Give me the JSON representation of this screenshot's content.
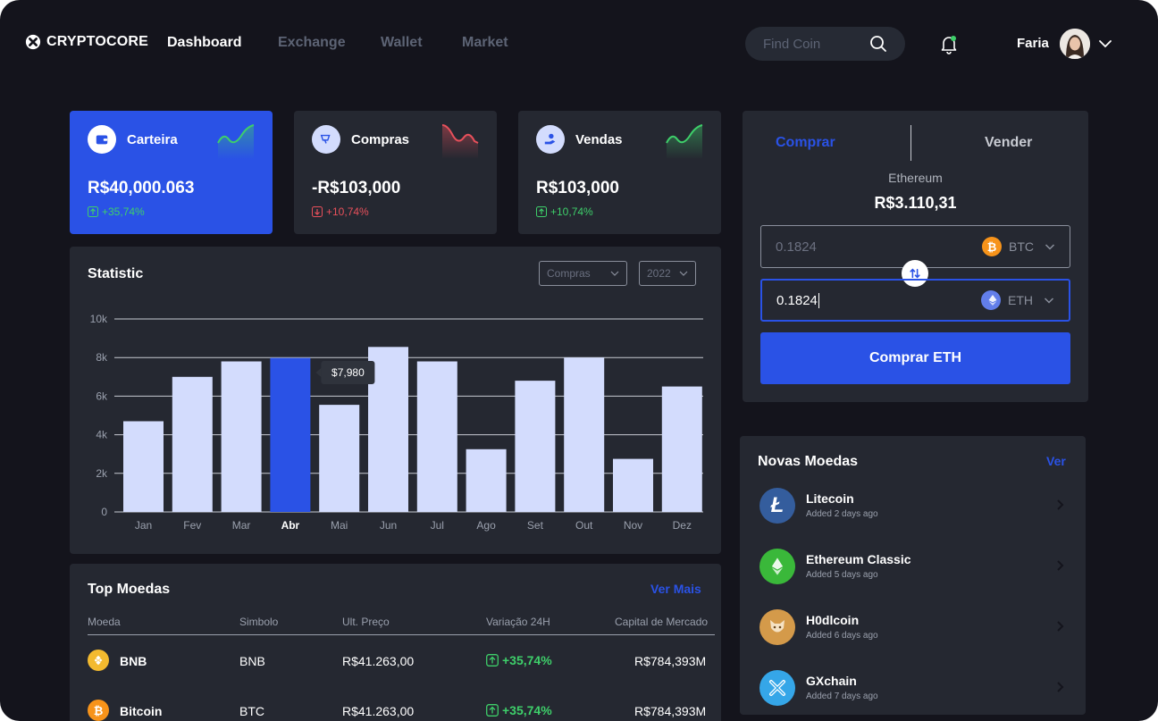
{
  "brand": "CRYPTOCORE",
  "nav": [
    "Dashboard",
    "Exchange",
    "Wallet",
    "Market"
  ],
  "search": {
    "placeholder": "Find Coin"
  },
  "user": {
    "name": "Faria"
  },
  "colors": {
    "accent": "#2a52e6",
    "bg": "#14141c",
    "card": "#252831",
    "positive": "#3ecf6a",
    "negative": "#e8505b",
    "bar": "#d3dcfd"
  },
  "stats": [
    {
      "title": "Carteira",
      "value": "R$40,000.063",
      "change": "+35,74%",
      "trend": "up"
    },
    {
      "title": "Compras",
      "value": "-R$103,000",
      "change": "+10,74%",
      "trend": "down"
    },
    {
      "title": "Vendas",
      "value": "R$103,000",
      "change": "+10,74%",
      "trend": "up"
    }
  ],
  "statistic": {
    "title": "Statistic",
    "filter_type": "Compras",
    "filter_year": "2022",
    "tooltip": "$7,980"
  },
  "chart_data": {
    "type": "bar",
    "categories": [
      "Jan",
      "Fev",
      "Mar",
      "Abr",
      "Mai",
      "Jun",
      "Jul",
      "Ago",
      "Set",
      "Out",
      "Nov",
      "Dez"
    ],
    "values": [
      4700,
      7000,
      7800,
      7980,
      5550,
      8550,
      7800,
      3250,
      6800,
      8000,
      2750,
      6500
    ],
    "highlighted": "Abr",
    "yticks": [
      "0",
      "2k",
      "4k",
      "6k",
      "8k",
      "10k"
    ],
    "ylim": [
      0,
      10000
    ],
    "grid": true
  },
  "top": {
    "title": "Top Moedas",
    "more": "Ver Mais",
    "headers": [
      "Moeda",
      "Simbolo",
      "Ult. Preço",
      "Variação 24H",
      "Capital de Mercado"
    ],
    "rows": [
      {
        "name": "BNB",
        "symbol": "BNB",
        "price": "R$41.263,00",
        "change": "+35,74%",
        "cap": "R$784,393M",
        "icon": "bnb-icon"
      },
      {
        "name": "Bitcoin",
        "symbol": "BTC",
        "price": "R$41.263,00",
        "change": "+35,74%",
        "cap": "R$784,393M",
        "icon": "bitcoin-icon"
      }
    ]
  },
  "trade": {
    "tab_buy": "Comprar",
    "tab_sell": "Vender",
    "coin": "Ethereum",
    "price": "R$3.110,31",
    "from_value": "0.1824",
    "from_currency": "BTC",
    "to_value": "0.1824",
    "to_currency": "ETH",
    "button": "Comprar ETH"
  },
  "novas": {
    "title": "Novas Moedas",
    "more": "Ver",
    "items": [
      {
        "name": "Litecoin",
        "added": "Added 2 days ago",
        "color": "#345d9d",
        "icon": "litecoin-icon"
      },
      {
        "name": "Ethereum Classic",
        "added": "Added 5 days ago",
        "color": "#3ab83a",
        "icon": "ethereum-classic-icon"
      },
      {
        "name": "H0dlcoin",
        "added": "Added 6 days ago",
        "color": "#d49a4a",
        "icon": "h0dlcoin-icon"
      },
      {
        "name": "GXchain",
        "added": "Added 7 days ago",
        "color": "#35a6e8",
        "icon": "gxchain-icon"
      }
    ]
  }
}
